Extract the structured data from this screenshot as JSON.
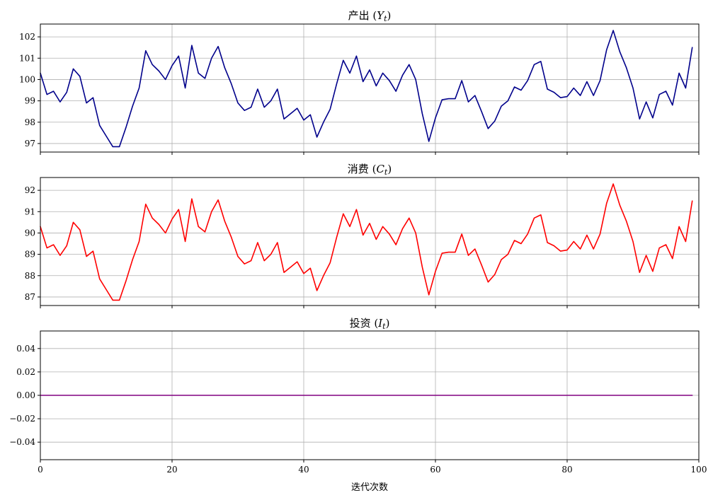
{
  "chart_data": [
    {
      "type": "line",
      "title": "产出 (Y_t)",
      "title_main": "产出 ",
      "title_symbol": "Y",
      "title_sub": "t",
      "color": "#00008b",
      "xlim": [
        0,
        100
      ],
      "ylim": [
        96.6,
        102.6
      ],
      "yticks": [
        97,
        98,
        99,
        100,
        101,
        102
      ],
      "ytick_labels": [
        "97",
        "98",
        "99",
        "100",
        "101",
        "102"
      ],
      "grid": true,
      "x": [
        0,
        1,
        2,
        3,
        4,
        5,
        6,
        7,
        8,
        9,
        10,
        11,
        12,
        13,
        14,
        15,
        16,
        17,
        18,
        19,
        20,
        21,
        22,
        23,
        24,
        25,
        26,
        27,
        28,
        29,
        30,
        31,
        32,
        33,
        34,
        35,
        36,
        37,
        38,
        39,
        40,
        41,
        42,
        43,
        44,
        45,
        46,
        47,
        48,
        49,
        50,
        51,
        52,
        53,
        54,
        55,
        56,
        57,
        58,
        59,
        60,
        61,
        62,
        63,
        64,
        65,
        66,
        67,
        68,
        69,
        70,
        71,
        72,
        73,
        74,
        75,
        76,
        77,
        78,
        79,
        80,
        81,
        82,
        83,
        84,
        85,
        86,
        87,
        88,
        89,
        90,
        91,
        92,
        93,
        94,
        95,
        96,
        97,
        98,
        99
      ],
      "values": [
        100.3,
        99.3,
        99.45,
        98.95,
        99.4,
        100.5,
        100.15,
        98.9,
        99.15,
        97.85,
        97.35,
        96.85,
        96.85,
        97.75,
        98.75,
        99.6,
        101.35,
        100.7,
        100.4,
        100.0,
        100.65,
        101.1,
        99.6,
        101.6,
        100.3,
        100.05,
        101.0,
        101.55,
        100.55,
        99.8,
        98.9,
        98.55,
        98.7,
        99.55,
        98.7,
        99.0,
        99.55,
        98.15,
        98.4,
        98.65,
        98.1,
        98.35,
        97.3,
        98.0,
        98.6,
        99.8,
        100.9,
        100.3,
        101.1,
        99.9,
        100.45,
        99.7,
        100.3,
        99.95,
        99.45,
        100.2,
        100.7,
        100.0,
        98.4,
        97.1,
        98.2,
        99.05,
        99.1,
        99.1,
        99.95,
        98.95,
        99.25,
        98.5,
        97.7,
        98.05,
        98.75,
        99.0,
        99.65,
        99.5,
        99.95,
        100.7,
        100.85,
        99.55,
        99.4,
        99.15,
        99.2,
        99.6,
        99.25,
        99.9,
        99.25,
        99.95,
        101.4,
        102.3,
        101.3,
        100.55,
        99.6,
        98.15,
        98.95,
        98.2,
        99.3,
        99.45,
        98.8,
        100.3,
        99.6,
        101.5
      ]
    },
    {
      "type": "line",
      "title": "消费 (C_t)",
      "title_main": "消费 ",
      "title_symbol": "C",
      "title_sub": "t",
      "color": "#ff0000",
      "xlim": [
        0,
        100
      ],
      "ylim": [
        86.6,
        92.6
      ],
      "yticks": [
        87,
        88,
        89,
        90,
        91,
        92
      ],
      "ytick_labels": [
        "87",
        "88",
        "89",
        "90",
        "91",
        "92"
      ],
      "grid": true,
      "x": [
        0,
        1,
        2,
        3,
        4,
        5,
        6,
        7,
        8,
        9,
        10,
        11,
        12,
        13,
        14,
        15,
        16,
        17,
        18,
        19,
        20,
        21,
        22,
        23,
        24,
        25,
        26,
        27,
        28,
        29,
        30,
        31,
        32,
        33,
        34,
        35,
        36,
        37,
        38,
        39,
        40,
        41,
        42,
        43,
        44,
        45,
        46,
        47,
        48,
        49,
        50,
        51,
        52,
        53,
        54,
        55,
        56,
        57,
        58,
        59,
        60,
        61,
        62,
        63,
        64,
        65,
        66,
        67,
        68,
        69,
        70,
        71,
        72,
        73,
        74,
        75,
        76,
        77,
        78,
        79,
        80,
        81,
        82,
        83,
        84,
        85,
        86,
        87,
        88,
        89,
        90,
        91,
        92,
        93,
        94,
        95,
        96,
        97,
        98,
        99
      ],
      "values": [
        90.3,
        89.3,
        89.45,
        88.95,
        89.4,
        90.5,
        90.15,
        88.9,
        89.15,
        87.85,
        87.35,
        86.85,
        86.85,
        87.75,
        88.75,
        89.6,
        91.35,
        90.7,
        90.4,
        90.0,
        90.65,
        91.1,
        89.6,
        91.6,
        90.3,
        90.05,
        91.0,
        91.55,
        90.55,
        89.8,
        88.9,
        88.55,
        88.7,
        89.55,
        88.7,
        89.0,
        89.55,
        88.15,
        88.4,
        88.65,
        88.1,
        88.35,
        87.3,
        88.0,
        88.6,
        89.8,
        90.9,
        90.3,
        91.1,
        89.9,
        90.45,
        89.7,
        90.3,
        89.95,
        89.45,
        90.2,
        90.7,
        90.0,
        88.4,
        87.1,
        88.2,
        89.05,
        89.1,
        89.1,
        89.95,
        88.95,
        89.25,
        88.5,
        87.7,
        88.05,
        88.75,
        89.0,
        89.65,
        89.5,
        89.95,
        90.7,
        90.85,
        89.55,
        89.4,
        89.15,
        89.2,
        89.6,
        89.25,
        89.9,
        89.25,
        89.95,
        91.4,
        92.3,
        91.3,
        90.55,
        89.6,
        88.15,
        88.95,
        88.2,
        89.3,
        89.45,
        88.8,
        90.3,
        89.6,
        91.5
      ]
    },
    {
      "type": "line",
      "title": "投资 (I_t)",
      "title_main": "投资 ",
      "title_symbol": "I",
      "title_sub": "t",
      "color": "#800080",
      "xlim": [
        0,
        100
      ],
      "ylim": [
        -0.055,
        0.055
      ],
      "yticks": [
        -0.04,
        -0.02,
        0.0,
        0.02,
        0.04
      ],
      "ytick_labels": [
        "−0.04",
        "−0.02",
        "0.00",
        "0.02",
        "0.04"
      ],
      "xticks": [
        0,
        20,
        40,
        60,
        80,
        100
      ],
      "xtick_labels": [
        "0",
        "20",
        "40",
        "60",
        "80",
        "100"
      ],
      "xlabel": "迭代次数",
      "grid": true,
      "x": [
        0,
        1,
        2,
        3,
        4,
        5,
        6,
        7,
        8,
        9,
        10,
        11,
        12,
        13,
        14,
        15,
        16,
        17,
        18,
        19,
        20,
        21,
        22,
        23,
        24,
        25,
        26,
        27,
        28,
        29,
        30,
        31,
        32,
        33,
        34,
        35,
        36,
        37,
        38,
        39,
        40,
        41,
        42,
        43,
        44,
        45,
        46,
        47,
        48,
        49,
        50,
        51,
        52,
        53,
        54,
        55,
        56,
        57,
        58,
        59,
        60,
        61,
        62,
        63,
        64,
        65,
        66,
        67,
        68,
        69,
        70,
        71,
        72,
        73,
        74,
        75,
        76,
        77,
        78,
        79,
        80,
        81,
        82,
        83,
        84,
        85,
        86,
        87,
        88,
        89,
        90,
        91,
        92,
        93,
        94,
        95,
        96,
        97,
        98,
        99
      ],
      "values": [
        0,
        0,
        0,
        0,
        0,
        0,
        0,
        0,
        0,
        0,
        0,
        0,
        0,
        0,
        0,
        0,
        0,
        0,
        0,
        0,
        0,
        0,
        0,
        0,
        0,
        0,
        0,
        0,
        0,
        0,
        0,
        0,
        0,
        0,
        0,
        0,
        0,
        0,
        0,
        0,
        0,
        0,
        0,
        0,
        0,
        0,
        0,
        0,
        0,
        0,
        0,
        0,
        0,
        0,
        0,
        0,
        0,
        0,
        0,
        0,
        0,
        0,
        0,
        0,
        0,
        0,
        0,
        0,
        0,
        0,
        0,
        0,
        0,
        0,
        0,
        0,
        0,
        0,
        0,
        0,
        0,
        0,
        0,
        0,
        0,
        0,
        0,
        0,
        0,
        0,
        0,
        0,
        0,
        0,
        0,
        0,
        0,
        0,
        0,
        0
      ]
    }
  ]
}
